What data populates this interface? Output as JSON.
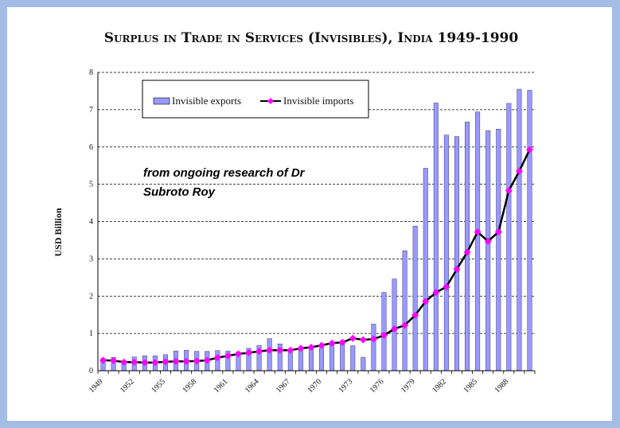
{
  "chart_data": {
    "type": "bar",
    "title": "Surplus in Trade in Services (Invisibles), India 1949-1990",
    "xlabel": "",
    "ylabel": "USD Billion",
    "ylim": [
      0,
      8
    ],
    "yticks": [
      "0",
      "1",
      "2",
      "3",
      "4",
      "5",
      "6",
      "7",
      "8"
    ],
    "grid": "horizontal dashed",
    "legend_position": "top-left",
    "x_tick_labels": [
      "1949",
      "1952",
      "1955",
      "1958",
      "1961",
      "1964",
      "1967",
      "1970",
      "1973",
      "1976",
      "1979",
      "1982",
      "1985",
      "1988"
    ],
    "categories": [
      1949,
      1950,
      1951,
      1952,
      1953,
      1954,
      1955,
      1956,
      1957,
      1958,
      1959,
      1960,
      1961,
      1962,
      1963,
      1964,
      1965,
      1966,
      1967,
      1968,
      1969,
      1970,
      1971,
      1972,
      1973,
      1974,
      1975,
      1976,
      1977,
      1978,
      1979,
      1980,
      1981,
      1982,
      1983,
      1984,
      1985,
      1986,
      1987,
      1988,
      1989,
      1990
    ],
    "series": [
      {
        "name": "Invisible exports",
        "kind": "bar",
        "color": "#9999ff",
        "values": [
          0.33,
          0.36,
          0.27,
          0.37,
          0.4,
          0.4,
          0.43,
          0.53,
          0.55,
          0.52,
          0.52,
          0.54,
          0.53,
          0.5,
          0.6,
          0.68,
          0.86,
          0.72,
          0.58,
          0.63,
          0.65,
          0.62,
          0.73,
          0.8,
          0.67,
          0.36,
          1.25,
          2.1,
          2.46,
          3.22,
          3.88,
          5.43,
          7.18,
          6.32,
          6.28,
          6.67,
          6.94,
          6.44,
          6.48,
          7.17,
          7.55,
          7.52
        ]
      },
      {
        "name": "Invisible imports",
        "kind": "line",
        "color": "#ff00ff",
        "values": [
          0.28,
          0.27,
          0.23,
          0.23,
          0.22,
          0.22,
          0.24,
          0.25,
          0.25,
          0.26,
          0.28,
          0.35,
          0.4,
          0.45,
          0.48,
          0.52,
          0.55,
          0.55,
          0.55,
          0.6,
          0.63,
          0.68,
          0.74,
          0.76,
          0.87,
          0.83,
          0.85,
          0.95,
          1.12,
          1.22,
          1.49,
          1.86,
          2.1,
          2.25,
          2.72,
          3.18,
          3.72,
          3.47,
          3.72,
          4.83,
          5.35,
          5.93
        ]
      }
    ],
    "annotations": [
      "from ongoing research of Dr",
      "Subroto Roy"
    ]
  }
}
